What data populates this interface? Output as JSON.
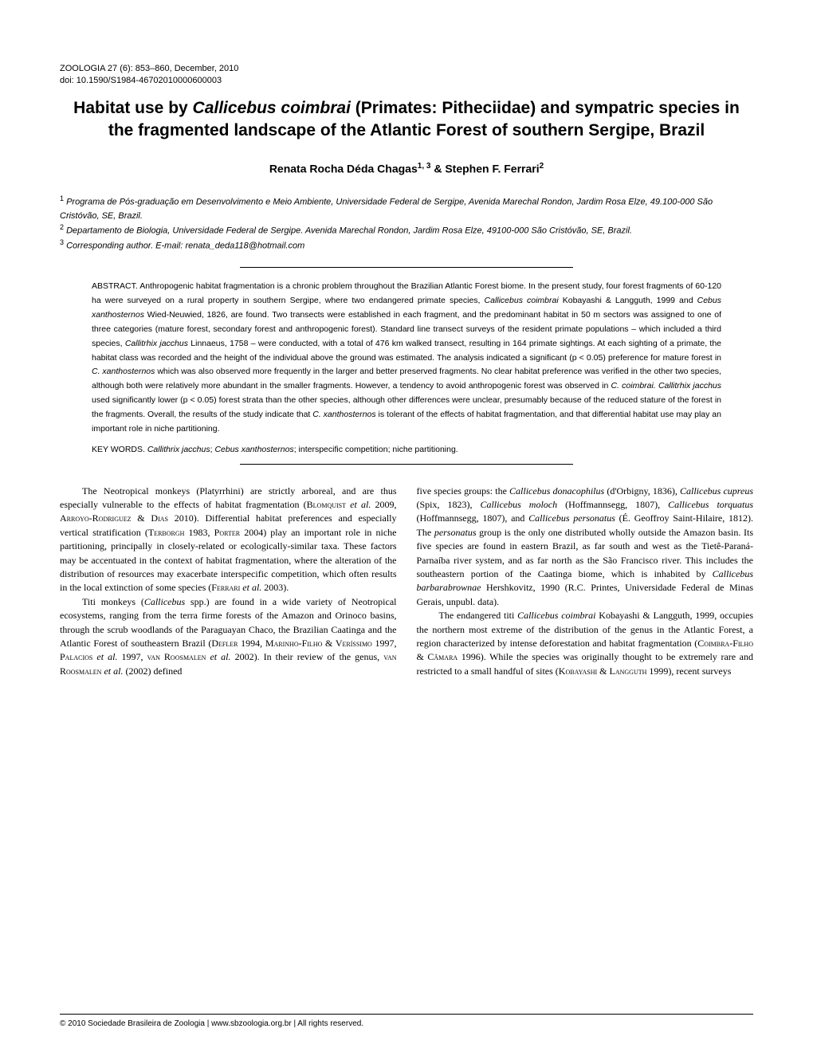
{
  "journal": {
    "citation": "ZOOLOGIA 27 (6): 853–860, December, 2010",
    "doi": "doi: 10.1590/S1984-46702010000600003"
  },
  "title": {
    "part1": "Habitat use by ",
    "species": "Callicebus coimbrai",
    "part2": " (Primates: Pitheciidae) and sympatric species in the fragmented landscape of the Atlantic Forest of southern Sergipe, Brazil"
  },
  "authors": {
    "author1": "Renata Rocha Déda Chagas",
    "author1_sup": "1, 3",
    "separator": " & ",
    "author2": "Stephen F. Ferrari",
    "author2_sup": "2"
  },
  "affiliations": {
    "aff1_sup": "1",
    "aff1": " Programa de Pós-graduação em Desenvolvimento e Meio Ambiente, Universidade Federal de Sergipe, Avenida Marechal Rondon, Jardim Rosa Elze, 49.100-000 São Cristóvão, SE, Brazil.",
    "aff2_sup": "2",
    "aff2": " Departamento de Biologia, Universidade Federal de Sergipe. Avenida Marechal Rondon, Jardim Rosa Elze, 49100-000 São Cristóvão, SE, Brazil.",
    "aff3_sup": "3",
    "aff3": " Corresponding author. E-mail: renata_deda118@hotmail.com"
  },
  "abstract": {
    "label": "ABSTRACT. ",
    "text1": "Anthropogenic habitat fragmentation is a chronic problem throughout the Brazilian Atlantic Forest biome. In the present study, four forest fragments of 60-120 ha were surveyed on a rural property in southern Sergipe, where two endangered primate species, ",
    "sp1": "Callicebus coimbrai",
    "text2": " Kobayashi & Langguth, 1999 and ",
    "sp2": "Cebus xanthosternos",
    "text3": " Wied-Neuwied, 1826, are found. Two transects were established in each fragment, and the predominant habitat in 50 m sectors was assigned to one of three categories (mature forest, secondary forest and anthropogenic forest). Standard line transect surveys of the resident primate populations – which included a third species, ",
    "sp3": "Callitrhix jacchus",
    "text4": " Linnaeus, 1758 – were conducted, with a total of 476 km walked transect, resulting in 164 primate sightings. At each sighting of a primate, the habitat class was recorded and the height of the individual above the ground was estimated. The analysis indicated a significant (p < 0.05) preference for mature forest in ",
    "sp4": "C. xanthosternos",
    "text5": " which was also observed more frequently in the larger and better preserved fragments. No clear habitat preference was verified in the other two species, although both were relatively more abundant in the smaller fragments. However, a tendency to avoid anthropogenic forest was observed in ",
    "sp5": "C. coimbrai. Callitrhix jacchus",
    "text6": " used significantly lower (p < 0.05) forest strata than the other species, although other differences were unclear, presumably because of the reduced stature of the forest in the fragments. Overall, the results of the study indicate that ",
    "sp6": "C. xanthosternos",
    "text7": " is tolerant of the effects of habitat fragmentation, and that differential habitat use may play an important role in niche partitioning."
  },
  "keywords": {
    "label": "KEY WORDS. ",
    "sp1": "Callithrix jacchus",
    "sep1": "; ",
    "sp2": "Cebus xanthosternos",
    "text": "; interspecific competition; niche partitioning."
  },
  "body": {
    "left": {
      "p1_1": "The Neotropical monkeys (Platyrrhini) are strictly arboreal, and are thus especially vulnerable to the effects of habitat fragmentation (",
      "p1_sc1": "Blomquist",
      "p1_2": " ",
      "p1_it1": "et al.",
      "p1_3": " 2009, ",
      "p1_sc2": "Arroyo-Rodriguez & Dias",
      "p1_4": " 2010). Differential habitat preferences and especially vertical stratification (",
      "p1_sc3": "Terborgh",
      "p1_5": " 1983, ",
      "p1_sc4": "Porter",
      "p1_6": " 2004) play an important role in niche partitioning, principally in closely-related or ecologically-similar taxa. These factors may be accentuated in the context of habitat fragmentation, where the alteration of the distribution of resources may exacerbate interspecific competition, which often results in the local extinction of some species (",
      "p1_sc5": "Ferrari",
      "p1_7": " ",
      "p1_it2": "et al.",
      "p1_8": " 2003).",
      "p2_1": "Titi monkeys (",
      "p2_sp1": "Callicebus",
      "p2_2": " spp.) are found in a wide variety of Neotropical ecosystems, ranging from the terra firme forests of the Amazon and Orinoco basins, through the scrub woodlands of the Paraguayan Chaco, the Brazilian Caatinga and the Atlantic Forest of southeastern Brazil (",
      "p2_sc1": "Defler",
      "p2_3": " 1994, ",
      "p2_sc2": "Marinho-Filho & Veríssimo",
      "p2_4": " 1997, ",
      "p2_sc3": "Palacios",
      "p2_5": " ",
      "p2_it1": "et al.",
      "p2_6": " 1997, ",
      "p2_sc4": "van Roosmalen",
      "p2_7": " ",
      "p2_it2": "et al.",
      "p2_8": " 2002). In their review of the genus, ",
      "p2_sc5": "van Roosmalen",
      "p2_9": " ",
      "p2_it3": "et al.",
      "p2_10": " (2002) defined"
    },
    "right": {
      "p1_1": "five species groups: the ",
      "p1_sp1": "Callicebus donacophilus",
      "p1_2": " (d'Orbigny, 1836), ",
      "p1_sp2": "Callicebus cupreus",
      "p1_3": " (Spix, 1823), ",
      "p1_sp3": "Callicebus moloch",
      "p1_4": " (Hoffmannsegg, 1807), ",
      "p1_sp4": "Callicebus torquatus",
      "p1_5": " (Hoffmannsegg, 1807), and ",
      "p1_sp5": "Callicebus personatus",
      "p1_6": " (É. Geoffroy Saint-Hilaire, 1812). The ",
      "p1_sp6": "personatus",
      "p1_7": " group is the only one distributed wholly outside the Amazon basin. Its five species are found in eastern Brazil, as far south and west as the Tietê-Paraná-Parnaíba river system, and as far north as the São Francisco river. This includes the southeastern portion of the Caatinga biome, which is inhabited by ",
      "p1_sp7": "Callicebus barbarabrownae",
      "p1_8": " Hershkovitz, 1990 (R.C. Printes, Universidade Federal de Minas Gerais, unpubl. data).",
      "p2_1": "The endangered titi ",
      "p2_sp1": "Callicebus coimbrai",
      "p2_2": " Kobayashi & Langguth, 1999, occupies the northern most extreme of the distribution of the genus in the Atlantic Forest, a region characterized by intense deforestation and habitat fragmentation (",
      "p2_sc1": "Coimbra-Filho & Câmara",
      "p2_3": " 1996). While the species was originally thought to be extremely rare and restricted to a small handful of sites (",
      "p2_sc2": "Kobayashi & Langguth",
      "p2_4": " 1999), recent surveys"
    }
  },
  "footer": {
    "text": "© 2010 Sociedade Brasileira de Zoologia | www.sbzoologia.org.br | All rights reserved."
  }
}
